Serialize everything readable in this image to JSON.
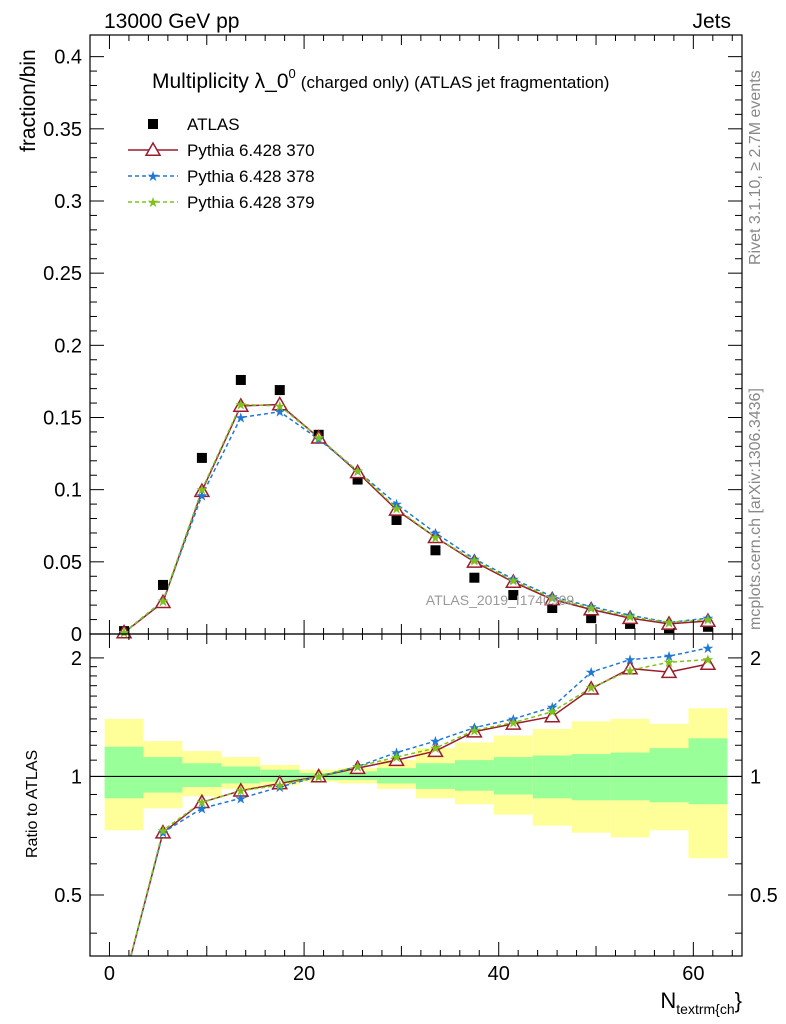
{
  "header": {
    "left": "13000 GeV pp",
    "right": "Jets"
  },
  "side_labels": {
    "rivet": "Rivet 3.1.10, ≥ 2.7M events",
    "mcplots": "mcplots.cern.ch [arXiv:1306.3436]"
  },
  "chart_data": [
    {
      "type": "scatter",
      "title_main": "Multiplicity λ_0",
      "title_sup": "0",
      "title_rest": "(charged only) (ATLAS jet fragmentation)",
      "ylabel": "fraction/bin",
      "xlabel": "N",
      "xlabel_sub": "textrm{ch",
      "xlabel_tail": "}",
      "analysis_tag": "ATLAS_2019_I1740909",
      "xlim": [
        -2,
        65
      ],
      "ylim": [
        0,
        0.415
      ],
      "yticks": [
        0,
        0.05,
        0.1,
        0.15,
        0.2,
        0.25,
        0.3,
        0.35,
        0.4
      ],
      "ytick_labels": [
        "0",
        "0.05",
        "0.1",
        "0.15",
        "0.2",
        "0.25",
        "0.3",
        "0.35",
        "0.4"
      ],
      "x": [
        1.5,
        5.5,
        9.5,
        13.5,
        17.5,
        21.5,
        25.5,
        29.5,
        33.5,
        37.5,
        41.5,
        45.5,
        49.5,
        53.5,
        57.5,
        61.5
      ],
      "legend": {
        "position": "top-left"
      },
      "series": [
        {
          "name": "ATLAS",
          "color": "#000000",
          "marker": "square",
          "values": [
            0.002,
            0.034,
            0.122,
            0.176,
            0.169,
            0.138,
            0.107,
            0.079,
            0.058,
            0.039,
            0.027,
            0.018,
            0.011,
            0.007,
            0.004,
            0.005
          ]
        },
        {
          "name": "Pythia 6.428 370",
          "color": "#9b1c2a",
          "marker": "triangle-open",
          "dash": "",
          "values": [
            0.001,
            0.022,
            0.099,
            0.158,
            0.159,
            0.136,
            0.112,
            0.086,
            0.067,
            0.05,
            0.036,
            0.024,
            0.017,
            0.011,
            0.007,
            0.009
          ]
        },
        {
          "name": "Pythia 6.428 378",
          "color": "#1f78d6",
          "marker": "star",
          "dash": "4,3",
          "values": [
            0.001,
            0.023,
            0.096,
            0.15,
            0.154,
            0.135,
            0.113,
            0.09,
            0.07,
            0.052,
            0.038,
            0.026,
            0.019,
            0.013,
            0.008,
            0.011
          ]
        },
        {
          "name": "Pythia 6.428 379",
          "color": "#7fc21b",
          "marker": "star",
          "dash": "4,3",
          "values": [
            0.001,
            0.023,
            0.1,
            0.159,
            0.158,
            0.136,
            0.113,
            0.087,
            0.067,
            0.051,
            0.037,
            0.025,
            0.018,
            0.012,
            0.008,
            0.01
          ]
        }
      ]
    },
    {
      "type": "line",
      "ylabel": "Ratio to ATLAS",
      "xlim": [
        -2,
        65
      ],
      "ylim": [
        0.35,
        2.3
      ],
      "yticks": [
        0.5,
        1,
        2
      ],
      "ytick_labels": [
        "0.5",
        "1",
        "2"
      ],
      "xticks": [
        0,
        20,
        40,
        60
      ],
      "xtick_labels": [
        "0",
        "20",
        "40",
        "60"
      ],
      "reference": 1,
      "x": [
        1.5,
        5.5,
        9.5,
        13.5,
        17.5,
        21.5,
        25.5,
        29.5,
        33.5,
        37.5,
        41.5,
        45.5,
        49.5,
        53.5,
        57.5,
        61.5
      ],
      "band_edges": [
        -0.5,
        3.5,
        7.5,
        11.5,
        15.5,
        19.5,
        23.5,
        27.5,
        31.5,
        35.5,
        39.5,
        43.5,
        47.5,
        51.5,
        55.5,
        59.5,
        63.5
      ],
      "band_inner": [
        [
          0.88,
          1.19
        ],
        [
          0.91,
          1.12
        ],
        [
          0.94,
          1.08
        ],
        [
          0.96,
          1.06
        ],
        [
          0.97,
          1.04
        ],
        [
          0.98,
          1.02
        ],
        [
          0.98,
          1.03
        ],
        [
          0.96,
          1.05
        ],
        [
          0.93,
          1.08
        ],
        [
          0.92,
          1.1
        ],
        [
          0.9,
          1.12
        ],
        [
          0.88,
          1.13
        ],
        [
          0.87,
          1.14
        ],
        [
          0.87,
          1.15
        ],
        [
          0.86,
          1.18
        ],
        [
          0.85,
          1.25
        ]
      ],
      "band_outer": [
        [
          0.73,
          1.4
        ],
        [
          0.83,
          1.23
        ],
        [
          0.89,
          1.16
        ],
        [
          0.93,
          1.12
        ],
        [
          0.95,
          1.07
        ],
        [
          0.97,
          1.04
        ],
        [
          0.96,
          1.05
        ],
        [
          0.93,
          1.1
        ],
        [
          0.88,
          1.18
        ],
        [
          0.85,
          1.22
        ],
        [
          0.8,
          1.27
        ],
        [
          0.75,
          1.32
        ],
        [
          0.72,
          1.38
        ],
        [
          0.7,
          1.4
        ],
        [
          0.73,
          1.36
        ],
        [
          0.62,
          1.49
        ]
      ],
      "series": [
        {
          "name": "Pythia 6.428 370",
          "color": "#9b1c2a",
          "marker": "triangle-open",
          "dash": "",
          "values": [
            0.3,
            0.72,
            0.86,
            0.92,
            0.96,
            1.0,
            1.05,
            1.1,
            1.16,
            1.3,
            1.36,
            1.42,
            1.67,
            1.88,
            1.84,
            1.93
          ]
        },
        {
          "name": "Pythia 6.428 378",
          "color": "#1f78d6",
          "marker": "star",
          "dash": "4,3",
          "values": [
            0.3,
            0.72,
            0.83,
            0.88,
            0.94,
            1.0,
            1.06,
            1.15,
            1.23,
            1.33,
            1.4,
            1.5,
            1.84,
            1.98,
            2.02,
            2.12
          ]
        },
        {
          "name": "Pythia 6.428 379",
          "color": "#7fc21b",
          "marker": "star",
          "dash": "4,3",
          "values": [
            0.3,
            0.73,
            0.86,
            0.92,
            0.95,
            1.0,
            1.06,
            1.12,
            1.18,
            1.31,
            1.37,
            1.46,
            1.68,
            1.86,
            1.95,
            1.98
          ]
        }
      ]
    }
  ]
}
